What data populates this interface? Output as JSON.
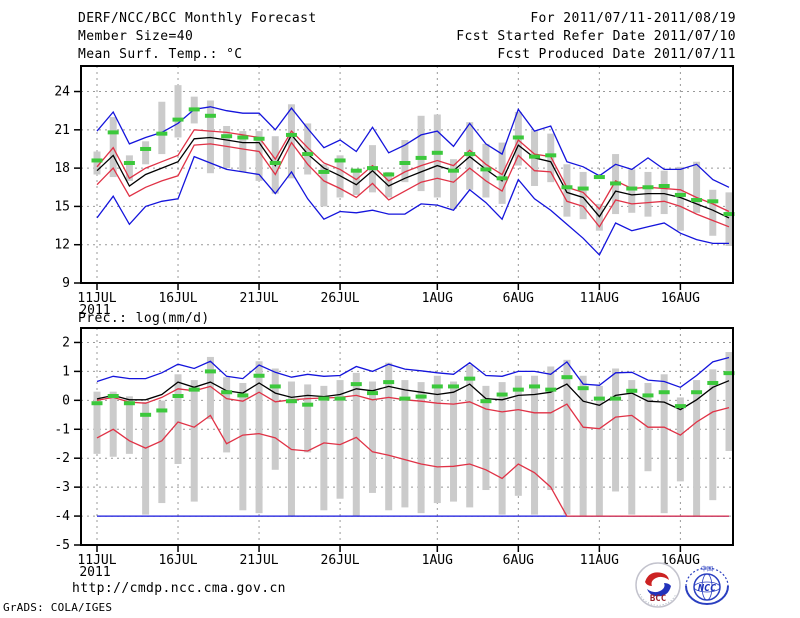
{
  "header": {
    "title": "DERF/NCC/BCC Monthly Forecast",
    "member_size": "Member Size=40",
    "for_range": "For 2011/07/11-2011/08/19",
    "fcst_started": "Fcst Started Refer Date 2011/07/10",
    "fcst_produced": "Fcst Produced Date 2011/07/11"
  },
  "footer": {
    "url": "http://cmdp.ncc.cma.gov.cn",
    "credit": "GrADS: COLA/IGES"
  },
  "logos": {
    "bcc": "BCC",
    "ncc": "NCC"
  },
  "colors": {
    "blue": "#1414dc",
    "red": "#e03246",
    "black": "#000000",
    "green": "#3cc83c",
    "gray_bar": "#cbcbcb",
    "grid": "#999999",
    "frame": "#000000"
  },
  "chart_data": [
    {
      "type": "line",
      "title": "Mean Surf. Temp.: °C",
      "n_days": 40,
      "ylim": [
        9,
        26
      ],
      "yticks": [
        9,
        12,
        15,
        18,
        21,
        24
      ],
      "grid": true,
      "legend_position": "none",
      "xticks": [
        {
          "day": 1,
          "label": "11JUL",
          "sublabel": "2011"
        },
        {
          "day": 6,
          "label": "16JUL"
        },
        {
          "day": 11,
          "label": "21JUL"
        },
        {
          "day": 16,
          "label": "26JUL"
        },
        {
          "day": 22,
          "label": "1AUG"
        },
        {
          "day": 27,
          "label": "6AUG"
        },
        {
          "day": 32,
          "label": "11AUG"
        },
        {
          "day": 37,
          "label": "16AUG"
        }
      ],
      "series": [
        {
          "name": "ensemble-max",
          "color": "blue",
          "values": [
            20.9,
            22.4,
            19.9,
            20.4,
            20.8,
            21.5,
            22.6,
            22.8,
            22.5,
            22.3,
            22.3,
            21.0,
            22.7,
            21.1,
            19.6,
            20.2,
            19.3,
            21.2,
            19.2,
            19.8,
            20.6,
            20.9,
            19.7,
            21.5,
            19.9,
            19.1,
            22.6,
            20.9,
            21.3,
            18.5,
            18.1,
            17.4,
            18.3,
            17.9,
            18.8,
            17.9,
            17.9,
            18.3,
            17.1,
            16.5
          ]
        },
        {
          "name": "upper-bound",
          "color": "red",
          "values": [
            18.1,
            19.6,
            17.2,
            18.0,
            18.5,
            19.0,
            21.0,
            20.9,
            20.8,
            20.6,
            20.4,
            18.7,
            20.9,
            19.6,
            18.4,
            17.9,
            17.1,
            18.2,
            17.0,
            17.7,
            18.2,
            18.6,
            18.2,
            19.4,
            18.3,
            17.5,
            20.2,
            19.1,
            18.9,
            16.5,
            16.1,
            14.8,
            17.0,
            16.4,
            16.5,
            16.4,
            16.3,
            15.7,
            15.2,
            14.6
          ]
        },
        {
          "name": "ensemble-mean",
          "color": "black",
          "values": [
            17.8,
            19.0,
            16.6,
            17.5,
            18.0,
            18.5,
            20.3,
            20.4,
            20.2,
            20.0,
            20.0,
            18.2,
            20.6,
            19.1,
            18.0,
            17.4,
            16.7,
            17.8,
            16.6,
            17.2,
            17.7,
            18.2,
            17.8,
            18.9,
            17.9,
            17.0,
            19.8,
            18.8,
            18.5,
            16.1,
            15.7,
            14.2,
            16.2,
            15.9,
            16.0,
            16.0,
            15.7,
            15.2,
            14.7,
            14.1
          ]
        },
        {
          "name": "lower-bound",
          "color": "red",
          "values": [
            16.7,
            18.0,
            15.8,
            16.5,
            17.0,
            17.4,
            19.8,
            19.9,
            19.7,
            19.5,
            19.3,
            17.5,
            20.0,
            18.3,
            17.0,
            16.4,
            15.7,
            16.8,
            15.5,
            16.2,
            16.9,
            17.2,
            16.9,
            18.0,
            17.0,
            16.2,
            19.0,
            17.8,
            17.7,
            15.4,
            15.0,
            13.4,
            15.5,
            15.2,
            15.3,
            15.4,
            15.0,
            14.4,
            13.9,
            13.4
          ]
        },
        {
          "name": "ensemble-min",
          "color": "blue",
          "values": [
            14.1,
            15.8,
            13.6,
            15.0,
            15.4,
            15.6,
            18.9,
            18.4,
            17.9,
            17.7,
            17.5,
            16.0,
            17.7,
            15.6,
            14.0,
            14.6,
            14.5,
            14.7,
            14.4,
            14.4,
            15.2,
            15.1,
            14.7,
            16.3,
            15.3,
            14.0,
            17.1,
            15.6,
            14.7,
            13.6,
            12.5,
            11.2,
            13.7,
            13.1,
            13.4,
            13.7,
            12.9,
            12.4,
            12.1,
            12.1
          ]
        }
      ],
      "spread_bars": {
        "color": "gray_bar",
        "hi": [
          19.3,
          22.0,
          19.0,
          20.1,
          23.2,
          24.5,
          23.6,
          23.3,
          21.3,
          20.9,
          20.9,
          20.5,
          23.0,
          21.5,
          18.3,
          19.0,
          17.9,
          19.8,
          17.7,
          20.2,
          22.1,
          22.2,
          18.7,
          21.6,
          19.9,
          20.0,
          22.4,
          20.9,
          20.7,
          18.3,
          17.7,
          15.2,
          19.1,
          17.9,
          17.7,
          17.8,
          18.1,
          18.5,
          16.3,
          16.1
        ],
        "lo": [
          17.5,
          17.3,
          17.0,
          18.3,
          19.1,
          20.4,
          21.5,
          17.6,
          18.0,
          17.7,
          17.0,
          16.0,
          17.2,
          17.5,
          15.0,
          15.7,
          15.9,
          16.1,
          15.7,
          16.9,
          16.2,
          15.7,
          14.8,
          16.3,
          15.7,
          15.2,
          18.2,
          16.6,
          16.9,
          14.2,
          14.0,
          13.1,
          14.4,
          14.5,
          14.2,
          14.4,
          13.1,
          14.5,
          12.7,
          11.9
        ]
      },
      "obs_dashes": {
        "color": "green",
        "values": [
          18.6,
          20.8,
          18.4,
          19.5,
          20.7,
          21.8,
          22.6,
          22.1,
          20.5,
          20.4,
          20.3,
          18.4,
          20.6,
          19.1,
          17.7,
          18.6,
          17.8,
          18.0,
          17.5,
          18.4,
          18.8,
          19.2,
          17.8,
          19.1,
          17.9,
          17.2,
          20.4,
          18.9,
          19.0,
          16.5,
          16.4,
          17.3,
          16.8,
          16.4,
          16.5,
          16.6,
          15.9,
          15.5,
          15.4,
          14.4
        ]
      }
    },
    {
      "type": "line",
      "title": "Prec.: log(mm/d)",
      "n_days": 40,
      "ylim": [
        -5,
        2.5
      ],
      "yticks": [
        -5,
        -4,
        -3,
        -2,
        -1,
        0,
        1,
        2
      ],
      "grid": true,
      "legend_position": "none",
      "xticks": [
        {
          "day": 1,
          "label": "11JUL",
          "sublabel": "2011"
        },
        {
          "day": 6,
          "label": "16JUL"
        },
        {
          "day": 11,
          "label": "21JUL"
        },
        {
          "day": 16,
          "label": "26JUL"
        },
        {
          "day": 22,
          "label": "1AUG"
        },
        {
          "day": 27,
          "label": "6AUG"
        },
        {
          "day": 32,
          "label": "11AUG"
        },
        {
          "day": 37,
          "label": "16AUG"
        }
      ],
      "series": [
        {
          "name": "ensemble-max",
          "color": "blue",
          "values": [
            0.65,
            0.83,
            0.75,
            0.75,
            0.95,
            1.25,
            1.1,
            1.35,
            0.83,
            0.75,
            1.22,
            0.97,
            0.8,
            0.9,
            0.83,
            0.86,
            1.17,
            1.0,
            1.25,
            1.08,
            1.02,
            0.95,
            0.9,
            1.3,
            0.86,
            0.83,
            1.0,
            1.0,
            0.9,
            1.33,
            0.56,
            0.52,
            0.95,
            0.97,
            0.7,
            0.65,
            0.45,
            0.86,
            1.33,
            1.48
          ]
        },
        {
          "name": "upper-bound",
          "color": "red",
          "values": [
            0.0,
            0.1,
            -0.06,
            -0.1,
            0.1,
            0.4,
            0.33,
            0.48,
            0.06,
            -0.03,
            0.28,
            -0.05,
            0.02,
            0.06,
            0.08,
            0.1,
            0.17,
            0.02,
            0.1,
            0.02,
            -0.03,
            -0.1,
            -0.13,
            -0.05,
            -0.3,
            -0.4,
            -0.32,
            -0.43,
            -0.43,
            -0.13,
            -0.93,
            -0.98,
            -0.58,
            -0.52,
            -0.93,
            -0.93,
            -1.2,
            -0.75,
            -0.4,
            -0.25
          ]
        },
        {
          "name": "ensemble-mean",
          "color": "black",
          "values": [
            0.05,
            0.17,
            0.02,
            0.02,
            0.2,
            0.63,
            0.45,
            0.63,
            0.33,
            0.25,
            0.6,
            0.25,
            0.1,
            0.17,
            0.13,
            0.2,
            0.4,
            0.33,
            0.48,
            0.36,
            0.28,
            0.2,
            0.28,
            0.56,
            0.06,
            0.02,
            0.17,
            0.2,
            0.28,
            0.56,
            -0.03,
            -0.17,
            0.17,
            0.25,
            -0.03,
            -0.06,
            -0.32,
            0.02,
            0.45,
            0.68
          ]
        },
        {
          "name": "lower-bound",
          "color": "red",
          "values": [
            -1.3,
            -1.0,
            -1.4,
            -1.65,
            -1.4,
            -0.75,
            -0.93,
            -0.52,
            -1.5,
            -1.2,
            -1.15,
            -1.3,
            -1.7,
            -1.75,
            -1.47,
            -1.53,
            -1.28,
            -1.78,
            -1.9,
            -2.05,
            -2.2,
            -2.3,
            -2.28,
            -2.2,
            -2.4,
            -2.7,
            -2.2,
            -2.5,
            -3.0,
            -4.0,
            -4.0,
            -4.0,
            -4.0,
            -4.0,
            -4.0,
            -4.0,
            -4.0,
            -4.0,
            -4.0,
            -4.0
          ]
        },
        {
          "name": "ensemble-min",
          "color": "blue",
          "values": [
            -4.0,
            -4.0,
            -4.0,
            -4.0,
            -4.0,
            -4.0,
            -4.0,
            -4.0,
            -4.0,
            -4.0,
            -4.0,
            -4.0,
            -4.0,
            -4.0,
            -4.0,
            -4.0,
            -4.0,
            -4.0,
            -4.0,
            -4.0,
            -4.0,
            -4.0,
            -4.0,
            -4.0,
            -4.0,
            -4.0,
            -4.0,
            -4.0,
            -4.0,
            -4.0,
            -4.0,
            -4.0,
            -4.0,
            -4.0,
            -4.0,
            -4.0,
            -4.0,
            -4.0,
            -4.0,
            -4.0
          ]
        }
      ],
      "spread_bars": {
        "color": "gray_bar",
        "hi": [
          0.3,
          0.3,
          0.14,
          -0.06,
          -0.01,
          0.9,
          0.7,
          1.5,
          0.8,
          0.6,
          1.35,
          1.1,
          0.65,
          0.55,
          0.5,
          0.7,
          0.95,
          0.65,
          1.3,
          0.7,
          0.63,
          0.85,
          0.65,
          1.23,
          0.5,
          0.63,
          0.85,
          0.85,
          1.17,
          1.4,
          0.85,
          0.5,
          1.1,
          0.7,
          0.6,
          0.9,
          0.1,
          0.7,
          1.07,
          1.67
        ],
        "lo": [
          -1.85,
          -1.95,
          -1.85,
          -3.95,
          -3.55,
          -2.2,
          -3.5,
          -0.65,
          -1.8,
          -3.8,
          -3.9,
          -2.4,
          -4.0,
          -1.8,
          -3.8,
          -3.4,
          -4.0,
          -3.2,
          -3.8,
          -3.7,
          -3.9,
          -3.55,
          -3.5,
          -3.7,
          -3.1,
          -3.95,
          -3.3,
          -3.95,
          -3.1,
          -3.95,
          -4.0,
          -4.0,
          -3.15,
          -3.95,
          -2.45,
          -3.9,
          -2.8,
          -4.0,
          -3.45,
          -1.75
        ]
      },
      "obs_dashes": {
        "color": "green",
        "values": [
          -0.1,
          0.15,
          -0.1,
          -0.5,
          -0.35,
          0.15,
          0.37,
          1.0,
          0.28,
          0.17,
          0.85,
          0.48,
          -0.03,
          -0.15,
          0.06,
          0.06,
          0.56,
          0.25,
          0.63,
          0.06,
          0.13,
          0.48,
          0.48,
          0.75,
          -0.03,
          0.2,
          0.37,
          0.48,
          0.37,
          0.8,
          0.42,
          0.06,
          0.06,
          0.33,
          0.17,
          0.28,
          -0.2,
          0.28,
          0.6,
          0.94
        ]
      }
    }
  ]
}
